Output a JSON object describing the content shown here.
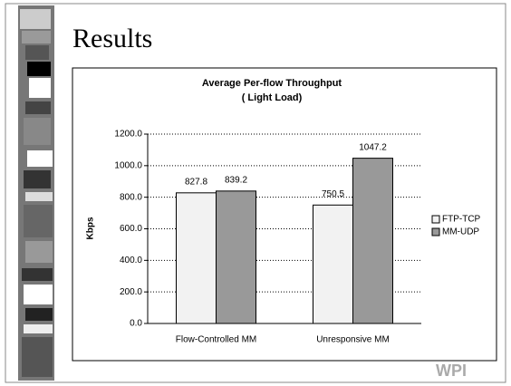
{
  "slide_title": "Results",
  "logo": "WPI",
  "chart_data": {
    "type": "bar",
    "title": "Average Per-flow Throughput",
    "subtitle": "( Light Load)",
    "y_label": "Kbps",
    "categories": [
      "Flow-Controlled MM",
      "Unresponsive MM"
    ],
    "series": [
      {
        "name": "FTP-TCP",
        "color": "#f2f2f2",
        "values": [
          827.8,
          750.5
        ]
      },
      {
        "name": "MM-UDP",
        "color": "#999999",
        "values": [
          839.2,
          1047.2
        ]
      }
    ],
    "ylim": [
      0,
      1200
    ],
    "yticks": [
      {
        "value": 0,
        "label": "0.0"
      },
      {
        "value": 200,
        "label": "200.0"
      },
      {
        "value": 400,
        "label": "400.0"
      },
      {
        "value": 600,
        "label": "600.0"
      },
      {
        "value": 800,
        "label": "800.0"
      },
      {
        "value": 1000,
        "label": "1000.0"
      },
      {
        "value": 1200,
        "label": "1200.0"
      }
    ],
    "grid": true,
    "legend": "right"
  }
}
